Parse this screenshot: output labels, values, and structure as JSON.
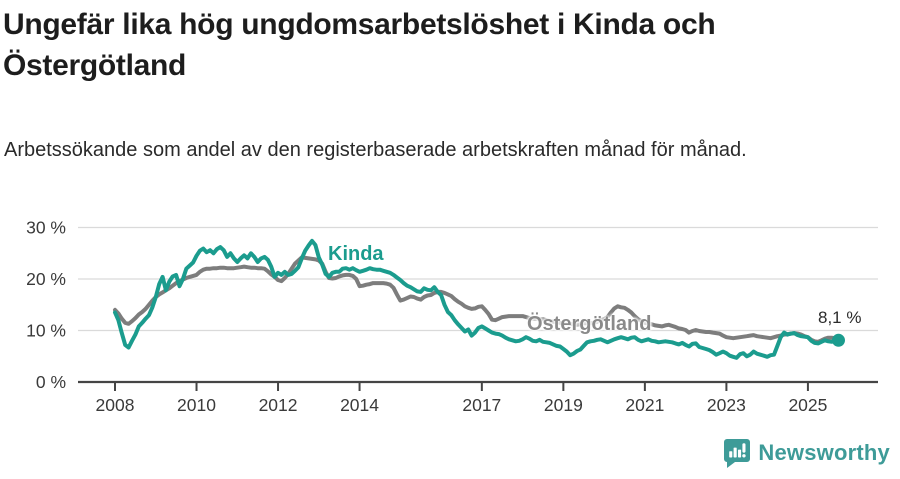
{
  "header": {
    "title": "Ungefär lika hög ungdomsarbetslöshet i Kinda och Östergötland",
    "subtitle": "Arbetssökande som andel av den registerbaserade arbetskraften månad för månad."
  },
  "chart_data": {
    "type": "line",
    "unit": "%",
    "frequency": "monthly",
    "start": "2008-01",
    "end": "2025-10",
    "x_range": [
      2007.1,
      2026.75
    ],
    "y_range": [
      0,
      32
    ],
    "grid": true,
    "legend": "inline-labels",
    "x_tick_years": [
      2008,
      2010,
      2012,
      2014,
      2017,
      2019,
      2021,
      2023,
      2025
    ],
    "y_ticks": [
      0,
      10,
      20,
      30
    ],
    "y_tick_labels": [
      "0 %",
      "10 %",
      "20 %",
      "30 %"
    ],
    "axis_color": "#454545",
    "grid_color": "#dadada",
    "tick_label_color": "#3a3a3a",
    "series": [
      {
        "name": "Kinda",
        "color": "#1b9c8e",
        "end_dot": true,
        "values": [
          13.5,
          12.0,
          9.5,
          7.2,
          6.7,
          8.0,
          9.2,
          10.8,
          11.5,
          12.3,
          13.0,
          14.5,
          16.5,
          19.0,
          20.4,
          17.8,
          19.5,
          20.5,
          20.8,
          18.6,
          20.0,
          22.0,
          22.6,
          23.2,
          24.5,
          25.5,
          25.9,
          25.2,
          25.6,
          25.0,
          25.8,
          26.2,
          25.6,
          24.3,
          25.0,
          24.0,
          23.3,
          24.0,
          24.6,
          24.0,
          25.0,
          24.3,
          23.3,
          24.0,
          24.3,
          23.7,
          22.4,
          20.4,
          21.2,
          20.8,
          21.4,
          20.8,
          21.0,
          21.6,
          22.3,
          24.0,
          25.5,
          26.5,
          27.4,
          26.6,
          24.2,
          22.8,
          21.0,
          20.4,
          21.2,
          21.4,
          21.4,
          22.0,
          22.1,
          21.8,
          22.1,
          21.7,
          21.4,
          21.6,
          21.8,
          22.1,
          21.9,
          21.8,
          21.8,
          21.6,
          21.4,
          21.2,
          20.8,
          20.3,
          19.8,
          19.2,
          18.7,
          18.4,
          18.0,
          17.6,
          17.5,
          18.2,
          17.9,
          17.8,
          18.4,
          17.5,
          16.9,
          15.0,
          13.6,
          13.0,
          12.0,
          11.2,
          10.5,
          9.8,
          10.2,
          9.0,
          9.6,
          10.5,
          10.8,
          10.4,
          10.0,
          9.6,
          9.4,
          9.3,
          9.0,
          8.6,
          8.3,
          8.1,
          7.9,
          8.0,
          8.3,
          8.7,
          8.4,
          8.0,
          7.9,
          8.2,
          7.8,
          7.7,
          7.6,
          7.3,
          7.0,
          6.9,
          6.4,
          5.9,
          5.2,
          5.5,
          6.0,
          6.3,
          7.0,
          7.7,
          7.9,
          8.0,
          8.2,
          8.3,
          8.0,
          7.7,
          8.0,
          8.3,
          8.5,
          8.7,
          8.5,
          8.3,
          8.6,
          8.7,
          8.2,
          7.9,
          8.1,
          8.3,
          8.0,
          7.9,
          7.7,
          7.8,
          7.9,
          7.8,
          7.7,
          7.5,
          7.3,
          7.6,
          7.2,
          6.9,
          7.4,
          7.5,
          6.8,
          6.6,
          6.4,
          6.2,
          5.8,
          5.3,
          5.6,
          5.9,
          5.6,
          5.1,
          4.9,
          4.7,
          5.4,
          5.6,
          5.0,
          5.3,
          5.9,
          5.5,
          5.3,
          5.1,
          4.9,
          5.2,
          5.3,
          7.0,
          8.7,
          9.6,
          9.2,
          9.4,
          9.5,
          9.1,
          8.9,
          8.8,
          8.7,
          8.0,
          7.6,
          7.5,
          7.8,
          8.1,
          7.9,
          7.8,
          8.0,
          8.1
        ]
      },
      {
        "name": "Östergötland",
        "color": "#7d7d7d",
        "end_dot": false,
        "values": [
          14.0,
          13.3,
          12.3,
          11.5,
          11.3,
          11.8,
          12.4,
          13.1,
          13.6,
          14.2,
          15.0,
          15.8,
          16.5,
          17.0,
          17.4,
          17.8,
          18.2,
          18.7,
          19.2,
          19.6,
          19.9,
          20.2,
          20.4,
          20.6,
          20.8,
          21.4,
          21.8,
          22.0,
          22.0,
          22.1,
          22.1,
          22.2,
          22.2,
          22.1,
          22.1,
          22.1,
          22.2,
          22.3,
          22.4,
          22.3,
          22.2,
          22.2,
          22.1,
          22.1,
          22.0,
          21.5,
          20.9,
          20.4,
          19.8,
          19.6,
          20.2,
          21.0,
          22.0,
          23.0,
          23.6,
          24.2,
          24.1,
          24.0,
          23.9,
          23.8,
          23.6,
          23.0,
          21.4,
          20.2,
          20.1,
          20.2,
          20.5,
          20.7,
          20.8,
          20.8,
          20.6,
          20.0,
          18.6,
          18.7,
          18.9,
          19.0,
          19.2,
          19.2,
          19.2,
          19.2,
          19.1,
          18.9,
          18.3,
          17.0,
          15.8,
          16.0,
          16.3,
          16.6,
          16.5,
          16.2,
          16.0,
          16.5,
          16.8,
          16.9,
          17.3,
          17.5,
          17.5,
          17.3,
          17.0,
          16.7,
          16.1,
          15.6,
          15.2,
          14.7,
          14.4,
          14.2,
          14.3,
          14.6,
          14.7,
          14.0,
          13.2,
          12.1,
          12.0,
          12.3,
          12.6,
          12.7,
          12.8,
          12.8,
          12.8,
          12.8,
          12.8,
          12.6,
          12.4,
          12.3,
          12.3,
          12.2,
          12.2,
          12.0,
          11.8,
          11.7,
          11.7,
          11.5,
          11.4,
          11.4,
          11.3,
          11.2,
          11.1,
          11.2,
          11.4,
          11.4,
          11.4,
          11.5,
          11.7,
          12.0,
          12.2,
          12.6,
          13.5,
          14.3,
          14.7,
          14.5,
          14.4,
          14.0,
          13.5,
          12.8,
          12.2,
          11.8,
          11.5,
          11.4,
          11.2,
          11.0,
          10.9,
          10.8,
          11.0,
          11.1,
          10.9,
          10.7,
          10.4,
          10.3,
          10.1,
          9.6,
          9.9,
          10.1,
          9.9,
          9.8,
          9.7,
          9.7,
          9.6,
          9.5,
          9.4,
          9.0,
          8.7,
          8.6,
          8.5,
          8.6,
          8.7,
          8.8,
          8.9,
          9.0,
          9.1,
          8.9,
          8.8,
          8.7,
          8.6,
          8.5,
          8.7,
          8.9,
          9.0,
          9.2,
          9.3,
          9.4,
          9.5,
          9.4,
          9.2,
          8.9,
          8.7,
          8.2,
          7.9,
          7.8,
          8.1,
          8.4,
          8.6,
          8.6,
          8.5,
          8.4
        ]
      }
    ],
    "annotations": {
      "kinda_label": "Kinda",
      "kinda_label_color": "#1b9c8e",
      "ostergotland_label": "Östergötland",
      "ostergotland_label_color": "#8a8a8a",
      "end_value_label": "8,1 %"
    }
  },
  "footer": {
    "brand": "Newsworthy",
    "brand_color": "#3E9B98",
    "logo_icon": "bar-chart-speech-bubble-icon"
  }
}
